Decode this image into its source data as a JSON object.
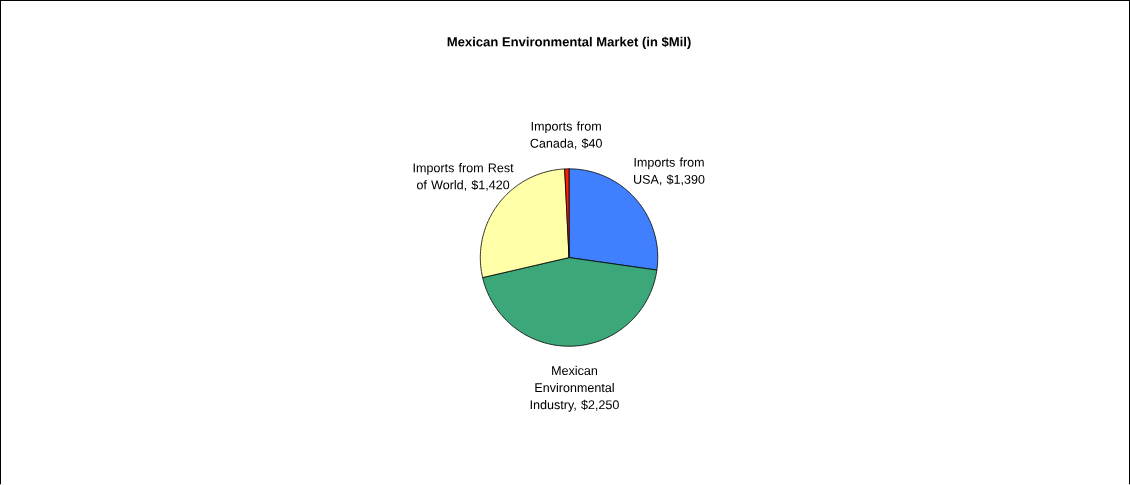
{
  "chart_data": {
    "type": "pie",
    "title": "Mexican Environmental Market (in $Mil)",
    "categories": [
      "Imports from USA, $1,390",
      "Mexican Environmental Industry, $2,250",
      "Imports from Rest of World, $1,420",
      "Imports from Canada, $40"
    ],
    "values": [
      1390,
      2250,
      1420,
      40
    ],
    "colors": [
      "#4080ff",
      "#3ca87a",
      "#ffffa8",
      "#ff2000"
    ]
  }
}
